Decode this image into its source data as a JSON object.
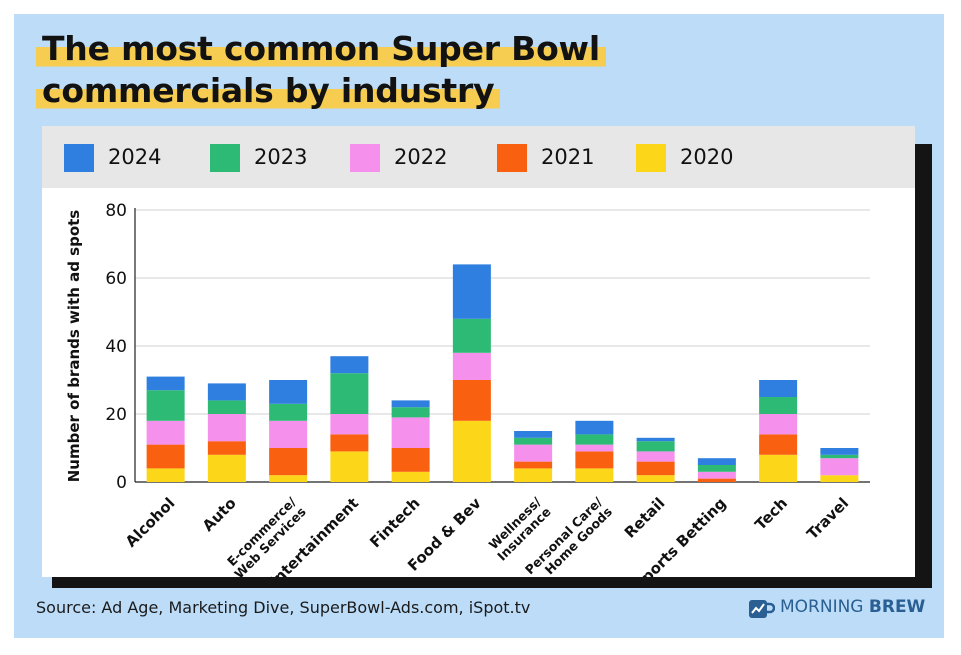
{
  "title_lines": [
    "The most common Super Bowl",
    "commercials by industry"
  ],
  "legend": [
    {
      "label": "2024",
      "color": "#2f7fe0"
    },
    {
      "label": "2023",
      "color": "#2dba74"
    },
    {
      "label": "2022",
      "color": "#f591ec"
    },
    {
      "label": "2021",
      "color": "#f9600f"
    },
    {
      "label": "2020",
      "color": "#fcd719"
    }
  ],
  "source": "Source: Ad Age, Marketing Dive, SuperBowl-Ads.com, iSpot.tv",
  "brand": {
    "part1": "MORNING",
    "part2": "BREW",
    "icon": "coffee-mug-chart-icon",
    "color": "#2a5f93"
  },
  "chart_data": {
    "type": "bar",
    "stacked": true,
    "title": "The most common Super Bowl commercials by industry",
    "ylabel": "Number of brands with ad spots",
    "xlabel": "",
    "ylim": [
      0,
      80
    ],
    "yticks": [
      0,
      20,
      40,
      60,
      80
    ],
    "grid": true,
    "legend_position": "top",
    "categories": [
      [
        "Alcohol"
      ],
      [
        "Auto"
      ],
      [
        "E-commerce/",
        "Web Services"
      ],
      [
        "Entertainment"
      ],
      [
        "Fintech"
      ],
      [
        "Food & Bev"
      ],
      [
        "Wellness/",
        "Insurance"
      ],
      [
        "Personal Care/",
        "Home Goods"
      ],
      [
        "Retail"
      ],
      [
        "Sports Betting"
      ],
      [
        "Tech"
      ],
      [
        "Travel"
      ]
    ],
    "series": [
      {
        "name": "2020",
        "color": "#fcd719",
        "values": [
          4,
          8,
          2,
          9,
          3,
          18,
          4,
          4,
          2,
          0,
          8,
          2
        ]
      },
      {
        "name": "2021",
        "color": "#f9600f",
        "values": [
          7,
          4,
          8,
          5,
          7,
          12,
          2,
          5,
          4,
          1,
          6,
          0
        ]
      },
      {
        "name": "2022",
        "color": "#f591ec",
        "values": [
          7,
          8,
          8,
          6,
          9,
          8,
          5,
          2,
          3,
          2,
          6,
          5
        ]
      },
      {
        "name": "2023",
        "color": "#2dba74",
        "values": [
          9,
          4,
          5,
          12,
          3,
          10,
          2,
          3,
          3,
          2,
          5,
          1
        ]
      },
      {
        "name": "2024",
        "color": "#2f7fe0",
        "values": [
          4,
          5,
          7,
          5,
          2,
          16,
          2,
          4,
          1,
          2,
          5,
          2
        ]
      }
    ]
  }
}
